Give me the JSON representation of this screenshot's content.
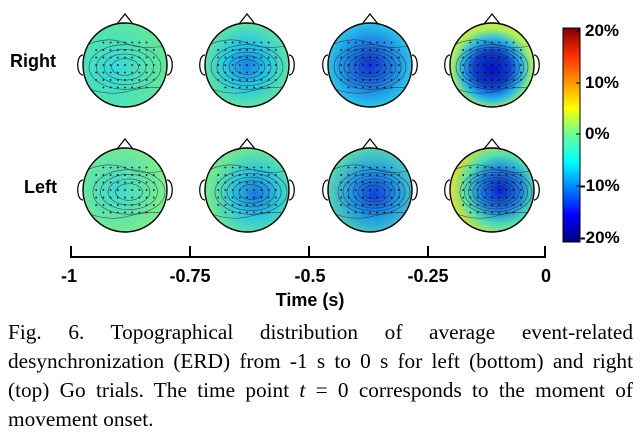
{
  "figure": {
    "row_labels": [
      "Right",
      "Left"
    ],
    "colorbar_ticks": [
      "20%",
      "10%",
      "0%",
      "-10%",
      "-20%"
    ],
    "time_ticks": [
      "-1",
      "-0.75",
      "-0.5",
      "-0.25",
      "0"
    ],
    "time_axis_label": "Time (s)",
    "maps": [
      {
        "row": "Right",
        "window": "-1 to -0.75 s",
        "erd_level": "weak"
      },
      {
        "row": "Right",
        "window": "-0.75 to -0.5 s",
        "erd_level": "moderate"
      },
      {
        "row": "Right",
        "window": "-0.5 to -0.25 s",
        "erd_level": "strong"
      },
      {
        "row": "Right",
        "window": "-0.25 to 0 s",
        "erd_level": "strongest"
      },
      {
        "row": "Left",
        "window": "-1 to -0.75 s",
        "erd_level": "weak"
      },
      {
        "row": "Left",
        "window": "-0.75 to -0.5 s",
        "erd_level": "moderate"
      },
      {
        "row": "Left",
        "window": "-0.5 to -0.25 s",
        "erd_level": "strong"
      },
      {
        "row": "Left",
        "window": "-0.25 to 0 s",
        "erd_level": "strongest"
      }
    ]
  },
  "caption": {
    "fig_label": "Fig. 6.",
    "text_1": " Topographical distribution of average event-related desynchronization (ERD) from -1 s to 0 s for left (bottom) and right (top) Go trials. The time point ",
    "var": "t",
    "text_2": " = 0 corresponds to the moment of movement onset."
  },
  "colors": {
    "jet": [
      "#00007f",
      "#0000ff",
      "#007fff",
      "#00ffff",
      "#7fff7f",
      "#ffff00",
      "#ff7f00",
      "#ff0000",
      "#7f0000"
    ]
  }
}
